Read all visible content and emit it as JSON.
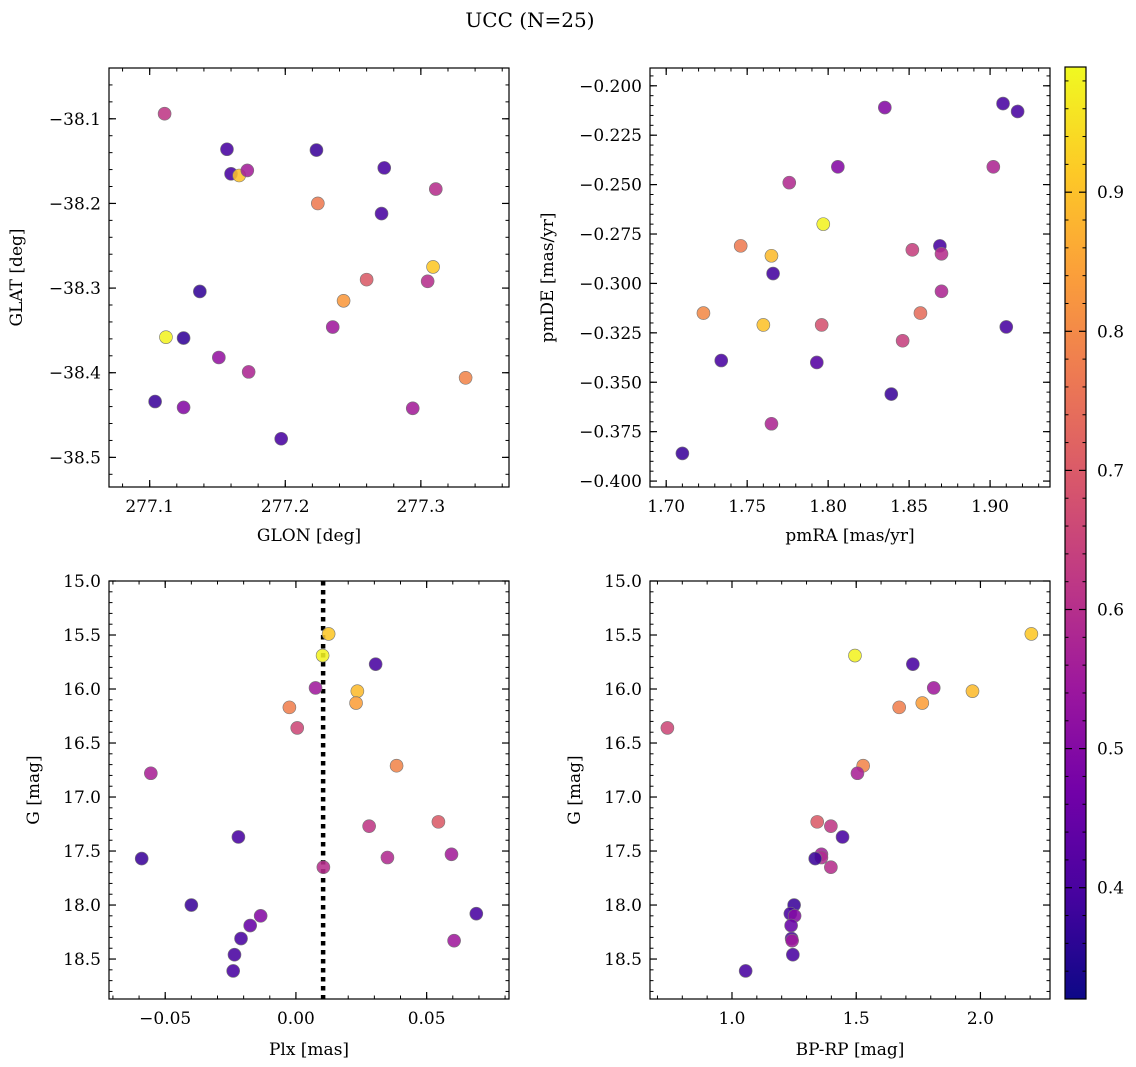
{
  "title": "UCC (N=25)",
  "colormap": "plasma",
  "colormap_stops": [
    "#0d0887",
    "#46039f",
    "#7201a8",
    "#9c179e",
    "#bd3786",
    "#d8576b",
    "#ed7953",
    "#fb9f3a",
    "#fdca26",
    "#f0f921"
  ],
  "colorbar": {
    "range": [
      0.32,
      0.99
    ],
    "ticks": [
      0.4,
      0.5,
      0.6,
      0.7,
      0.8,
      0.9
    ]
  },
  "chart_data": [
    {
      "type": "scatter",
      "id": "glon-glat",
      "xlabel": "GLON [deg]",
      "ylabel": "GLAT [deg]",
      "xlim": [
        277.07,
        277.365
      ],
      "ylim": [
        -38.535,
        -38.04
      ],
      "xticks": [
        277.1,
        277.2,
        277.3
      ],
      "xticklabels": [
        "277.1",
        "277.2",
        "277.3"
      ],
      "yticks": [
        -38.1,
        -38.2,
        -38.3,
        -38.4,
        -38.5
      ],
      "yticklabels": [
        "−38.1",
        "−38.2",
        "−38.3",
        "−38.4",
        "−38.5"
      ],
      "points": [
        {
          "x": 277.111,
          "y": -38.094,
          "c": 0.62
        },
        {
          "x": 277.157,
          "y": -38.136,
          "c": 0.4
        },
        {
          "x": 277.16,
          "y": -38.165,
          "c": 0.4
        },
        {
          "x": 277.166,
          "y": -38.167,
          "c": 0.9
        },
        {
          "x": 277.172,
          "y": -38.161,
          "c": 0.56
        },
        {
          "x": 277.223,
          "y": -38.137,
          "c": 0.38
        },
        {
          "x": 277.273,
          "y": -38.158,
          "c": 0.4
        },
        {
          "x": 277.311,
          "y": -38.183,
          "c": 0.6
        },
        {
          "x": 277.224,
          "y": -38.2,
          "c": 0.77
        },
        {
          "x": 277.271,
          "y": -38.212,
          "c": 0.4
        },
        {
          "x": 277.309,
          "y": -38.275,
          "c": 0.91
        },
        {
          "x": 277.26,
          "y": -38.29,
          "c": 0.7
        },
        {
          "x": 277.305,
          "y": -38.292,
          "c": 0.6
        },
        {
          "x": 277.137,
          "y": -38.304,
          "c": 0.37
        },
        {
          "x": 277.243,
          "y": -38.315,
          "c": 0.83
        },
        {
          "x": 277.235,
          "y": -38.346,
          "c": 0.55
        },
        {
          "x": 277.112,
          "y": -38.358,
          "c": 0.98
        },
        {
          "x": 277.125,
          "y": -38.359,
          "c": 0.37
        },
        {
          "x": 277.151,
          "y": -38.382,
          "c": 0.53
        },
        {
          "x": 277.173,
          "y": -38.399,
          "c": 0.58
        },
        {
          "x": 277.333,
          "y": -38.406,
          "c": 0.79
        },
        {
          "x": 277.104,
          "y": -38.434,
          "c": 0.38
        },
        {
          "x": 277.125,
          "y": -38.441,
          "c": 0.5
        },
        {
          "x": 277.294,
          "y": -38.442,
          "c": 0.56
        },
        {
          "x": 277.197,
          "y": -38.478,
          "c": 0.4
        }
      ]
    },
    {
      "type": "scatter",
      "id": "pmra-pmde",
      "xlabel": "pmRA [mas/yr]",
      "ylabel": "pmDE [mas/yr]",
      "xlim": [
        1.69,
        1.937
      ],
      "ylim": [
        -0.403,
        -0.191
      ],
      "xticks": [
        1.7,
        1.75,
        1.8,
        1.85,
        1.9
      ],
      "xticklabels": [
        "1.70",
        "1.75",
        "1.80",
        "1.85",
        "1.90"
      ],
      "yticks": [
        -0.2,
        -0.225,
        -0.25,
        -0.275,
        -0.3,
        -0.325,
        -0.35,
        -0.375,
        -0.4
      ],
      "yticklabels": [
        "−0.200",
        "−0.225",
        "−0.250",
        "−0.275",
        "−0.300",
        "−0.325",
        "−0.350",
        "−0.375",
        "−0.400"
      ],
      "points": [
        {
          "x": 1.908,
          "y": -0.209,
          "c": 0.4
        },
        {
          "x": 1.835,
          "y": -0.211,
          "c": 0.5
        },
        {
          "x": 1.917,
          "y": -0.213,
          "c": 0.4
        },
        {
          "x": 1.806,
          "y": -0.241,
          "c": 0.5
        },
        {
          "x": 1.902,
          "y": -0.241,
          "c": 0.58
        },
        {
          "x": 1.776,
          "y": -0.249,
          "c": 0.59
        },
        {
          "x": 1.797,
          "y": -0.27,
          "c": 0.98
        },
        {
          "x": 1.746,
          "y": -0.281,
          "c": 0.77
        },
        {
          "x": 1.869,
          "y": -0.281,
          "c": 0.4
        },
        {
          "x": 1.852,
          "y": -0.283,
          "c": 0.64
        },
        {
          "x": 1.87,
          "y": -0.285,
          "c": 0.6
        },
        {
          "x": 1.765,
          "y": -0.286,
          "c": 0.89
        },
        {
          "x": 1.766,
          "y": -0.295,
          "c": 0.39
        },
        {
          "x": 1.87,
          "y": -0.304,
          "c": 0.58
        },
        {
          "x": 1.723,
          "y": -0.315,
          "c": 0.8
        },
        {
          "x": 1.857,
          "y": -0.315,
          "c": 0.74
        },
        {
          "x": 1.76,
          "y": -0.321,
          "c": 0.9
        },
        {
          "x": 1.796,
          "y": -0.321,
          "c": 0.68
        },
        {
          "x": 1.91,
          "y": -0.322,
          "c": 0.4
        },
        {
          "x": 1.846,
          "y": -0.329,
          "c": 0.64
        },
        {
          "x": 1.734,
          "y": -0.339,
          "c": 0.4
        },
        {
          "x": 1.793,
          "y": -0.34,
          "c": 0.42
        },
        {
          "x": 1.839,
          "y": -0.356,
          "c": 0.38
        },
        {
          "x": 1.765,
          "y": -0.371,
          "c": 0.58
        },
        {
          "x": 1.71,
          "y": -0.386,
          "c": 0.38
        }
      ]
    },
    {
      "type": "scatter",
      "id": "plx-g",
      "xlabel": "Plx [mas]",
      "ylabel": "G [mag]",
      "xlim": [
        -0.0715,
        0.0815
      ],
      "ylim": [
        18.87,
        15.0
      ],
      "xticks": [
        -0.05,
        0.0,
        0.05
      ],
      "xticklabels": [
        "−0.05",
        "0.00",
        "0.05"
      ],
      "yticks": [
        15.0,
        15.5,
        16.0,
        16.5,
        17.0,
        17.5,
        18.0,
        18.5
      ],
      "yticklabels": [
        "15.0",
        "15.5",
        "16.0",
        "16.5",
        "17.0",
        "17.5",
        "18.0",
        "18.5"
      ],
      "vline": 0.0104,
      "points": [
        {
          "x": 0.0125,
          "y": 15.49,
          "c": 0.91
        },
        {
          "x": 0.0102,
          "y": 15.69,
          "c": 0.98
        },
        {
          "x": 0.0305,
          "y": 15.77,
          "c": 0.4
        },
        {
          "x": 0.0075,
          "y": 15.99,
          "c": 0.55
        },
        {
          "x": 0.0235,
          "y": 16.02,
          "c": 0.89
        },
        {
          "x": 0.023,
          "y": 16.13,
          "c": 0.84
        },
        {
          "x": -0.0025,
          "y": 16.17,
          "c": 0.78
        },
        {
          "x": 0.0005,
          "y": 16.36,
          "c": 0.66
        },
        {
          "x": 0.0385,
          "y": 16.71,
          "c": 0.79
        },
        {
          "x": -0.0555,
          "y": 16.78,
          "c": 0.57
        },
        {
          "x": 0.0545,
          "y": 17.23,
          "c": 0.7
        },
        {
          "x": 0.028,
          "y": 17.27,
          "c": 0.62
        },
        {
          "x": -0.022,
          "y": 17.37,
          "c": 0.4
        },
        {
          "x": 0.0595,
          "y": 17.53,
          "c": 0.56
        },
        {
          "x": 0.035,
          "y": 17.56,
          "c": 0.59
        },
        {
          "x": -0.059,
          "y": 17.57,
          "c": 0.38
        },
        {
          "x": 0.0105,
          "y": 17.65,
          "c": 0.6
        },
        {
          "x": -0.04,
          "y": 18.0,
          "c": 0.38
        },
        {
          "x": 0.069,
          "y": 18.08,
          "c": 0.4
        },
        {
          "x": -0.0135,
          "y": 18.1,
          "c": 0.5
        },
        {
          "x": -0.0175,
          "y": 18.19,
          "c": 0.45
        },
        {
          "x": -0.021,
          "y": 18.31,
          "c": 0.4
        },
        {
          "x": 0.0605,
          "y": 18.33,
          "c": 0.55
        },
        {
          "x": -0.0235,
          "y": 18.46,
          "c": 0.4
        },
        {
          "x": -0.024,
          "y": 18.61,
          "c": 0.4
        }
      ]
    },
    {
      "type": "scatter",
      "id": "bprp-g",
      "xlabel": "BP-RP [mag]",
      "ylabel": "G [mag]",
      "xlim": [
        0.67,
        2.28
      ],
      "ylim": [
        18.87,
        15.0
      ],
      "xticks": [
        1.0,
        1.5,
        2.0
      ],
      "xticklabels": [
        "1.0",
        "1.5",
        "2.0"
      ],
      "yticks": [
        15.0,
        15.5,
        16.0,
        16.5,
        17.0,
        17.5,
        18.0,
        18.5
      ],
      "yticklabels": [
        "15.0",
        "15.5",
        "16.0",
        "16.5",
        "17.0",
        "17.5",
        "18.0",
        "18.5"
      ],
      "points": [
        {
          "x": 2.205,
          "y": 15.49,
          "c": 0.91
        },
        {
          "x": 1.495,
          "y": 15.69,
          "c": 0.98
        },
        {
          "x": 1.728,
          "y": 15.77,
          "c": 0.4
        },
        {
          "x": 1.812,
          "y": 15.99,
          "c": 0.55
        },
        {
          "x": 1.968,
          "y": 16.02,
          "c": 0.89
        },
        {
          "x": 1.766,
          "y": 16.13,
          "c": 0.84
        },
        {
          "x": 1.673,
          "y": 16.17,
          "c": 0.78
        },
        {
          "x": 0.74,
          "y": 16.36,
          "c": 0.66
        },
        {
          "x": 1.528,
          "y": 16.71,
          "c": 0.79
        },
        {
          "x": 1.505,
          "y": 16.78,
          "c": 0.57
        },
        {
          "x": 1.343,
          "y": 17.23,
          "c": 0.7
        },
        {
          "x": 1.398,
          "y": 17.27,
          "c": 0.62
        },
        {
          "x": 1.445,
          "y": 17.37,
          "c": 0.4
        },
        {
          "x": 1.36,
          "y": 17.53,
          "c": 0.56
        },
        {
          "x": 1.36,
          "y": 17.56,
          "c": 0.59
        },
        {
          "x": 1.335,
          "y": 17.57,
          "c": 0.38
        },
        {
          "x": 1.398,
          "y": 17.65,
          "c": 0.6
        },
        {
          "x": 1.25,
          "y": 18.0,
          "c": 0.38
        },
        {
          "x": 1.235,
          "y": 18.08,
          "c": 0.4
        },
        {
          "x": 1.252,
          "y": 18.1,
          "c": 0.5
        },
        {
          "x": 1.238,
          "y": 18.19,
          "c": 0.45
        },
        {
          "x": 1.24,
          "y": 18.31,
          "c": 0.4
        },
        {
          "x": 1.242,
          "y": 18.33,
          "c": 0.55
        },
        {
          "x": 1.245,
          "y": 18.46,
          "c": 0.4
        },
        {
          "x": 1.055,
          "y": 18.61,
          "c": 0.4
        }
      ]
    }
  ]
}
